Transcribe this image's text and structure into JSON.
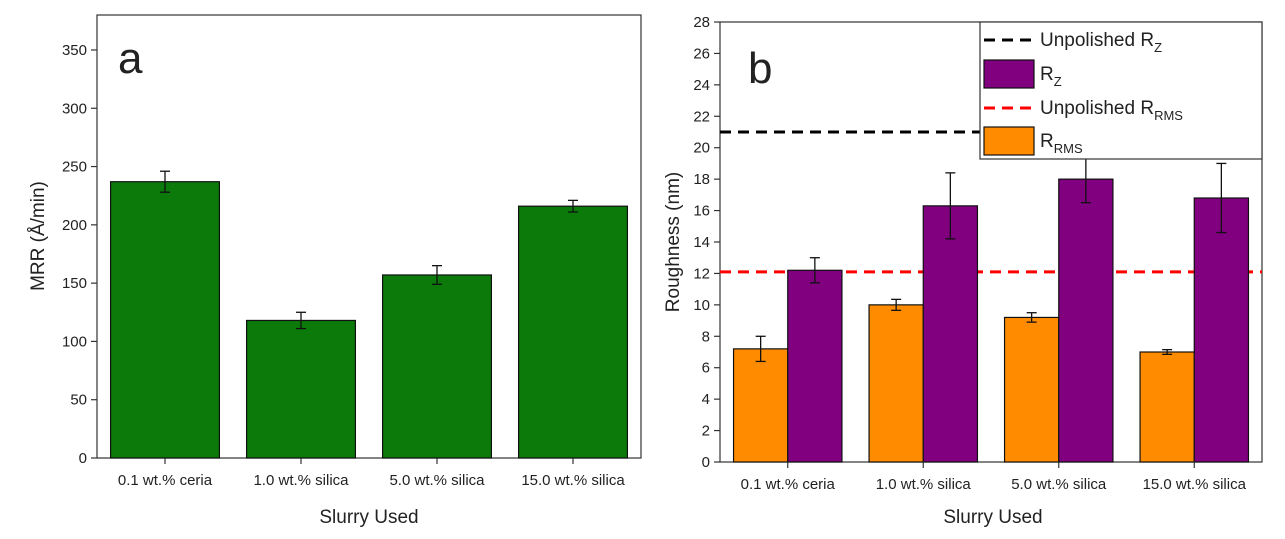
{
  "figure": {
    "panel_a_letter": "a",
    "panel_b_letter": "b"
  },
  "chart_data": [
    {
      "type": "bar",
      "panel": "a",
      "categories": [
        "0.1 wt.% ceria",
        "1.0 wt.% silica",
        "5.0 wt.% silica",
        "15.0 wt.% silica"
      ],
      "series": [
        {
          "values": [
            237,
            118,
            157,
            216
          ],
          "errors": [
            9,
            7,
            8,
            5
          ],
          "color": "#0b7a0b"
        }
      ],
      "xlabel": "Slurry Used",
      "ylabel": "MRR (Å/min)",
      "ylim": [
        0,
        380
      ],
      "yticks": [
        0,
        50,
        100,
        150,
        200,
        250,
        300,
        350
      ],
      "grid": false
    },
    {
      "type": "bar",
      "panel": "b",
      "categories": [
        "0.1 wt.% ceria",
        "1.0 wt.% silica",
        "5.0 wt.% silica",
        "15.0 wt.% silica"
      ],
      "series": [
        {
          "name": "R",
          "name_sub": "RMS",
          "values": [
            7.2,
            10.0,
            9.2,
            7.0
          ],
          "errors": [
            0.8,
            0.35,
            0.3,
            0.15
          ],
          "color": "#ff8c00"
        },
        {
          "name": "R",
          "name_sub": "Z",
          "values": [
            12.2,
            16.3,
            18.0,
            16.8
          ],
          "errors": [
            0.8,
            2.1,
            1.5,
            2.2
          ],
          "color": "#800080"
        }
      ],
      "reference_lines": [
        {
          "name": "Unpolished R",
          "name_sub": "Z",
          "value": 21.0,
          "color": "#000000",
          "dash": true,
          "span": [
            0,
            0.62
          ]
        },
        {
          "name": "Unpolished R",
          "name_sub": "RMS",
          "value": 12.1,
          "color": "#ff0000",
          "dash": true,
          "span": [
            0,
            1
          ]
        }
      ],
      "legend_order": [
        "ref0",
        "s1",
        "ref1",
        "s0"
      ],
      "xlabel": "Slurry Used",
      "ylabel": "Roughness (nm)",
      "ylim": [
        0,
        28
      ],
      "yticks": [
        0,
        2,
        4,
        6,
        8,
        10,
        12,
        14,
        16,
        18,
        20,
        22,
        24,
        26,
        28
      ],
      "legend_position": "top-right",
      "grid": false
    }
  ]
}
